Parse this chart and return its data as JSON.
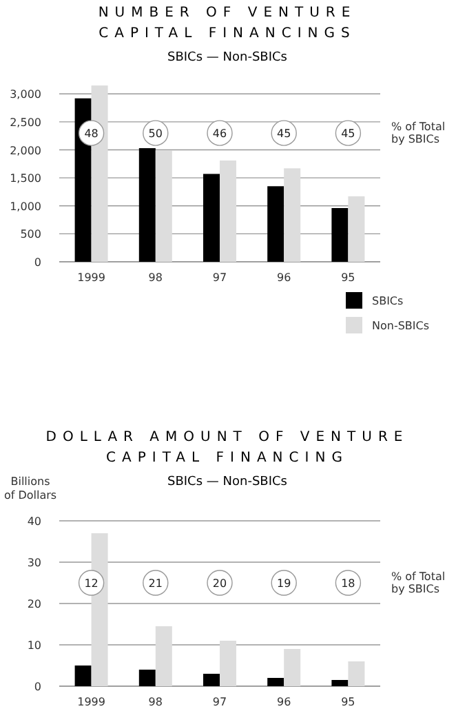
{
  "chart_data": [
    {
      "type": "bar",
      "title": "NUMBER OF VENTURE CAPITAL FINANCINGS",
      "subtitle": "SBICs — Non-SBICs",
      "categories": [
        "1999",
        "98",
        "97",
        "96",
        "95"
      ],
      "series": [
        {
          "name": "SBICs",
          "color": "#000000",
          "values": [
            2920,
            2030,
            1570,
            1350,
            960
          ]
        },
        {
          "name": "Non-SBICs",
          "color": "#dddddd",
          "values": [
            3150,
            1990,
            1810,
            1670,
            1170
          ]
        }
      ],
      "ylim": [
        0,
        3200
      ],
      "yticks": [
        0,
        {
          "value": 500,
          "label": "500"
        },
        {
          "value": 1000,
          "label": "1,000"
        },
        {
          "value": 1500,
          "label": "1,500"
        },
        {
          "value": 2000,
          "label": "2,000"
        },
        {
          "value": 2500,
          "label": "2,500"
        },
        {
          "value": 3000,
          "label": "3,000"
        }
      ],
      "grid": "y",
      "legend": "bottom right",
      "annotations": [
        {
          "text": "48",
          "x": "1999",
          "y": 2300
        },
        {
          "text": "50",
          "x": "98",
          "y": 2300
        },
        {
          "text": "46",
          "x": "97",
          "y": 2300
        },
        {
          "text": "45",
          "x": "96",
          "y": 2300
        },
        {
          "text": "45",
          "x": "95",
          "y": 2300
        },
        "% of Total by SBICs"
      ]
    },
    {
      "type": "bar",
      "title": "DOLLAR AMOUNT OF VENTURE CAPITAL FINANCING",
      "subtitle": "SBICs — Non-SBICs",
      "ylabel": "Billions of Dollars",
      "categories": [
        "1999",
        "98",
        "97",
        "96",
        "95"
      ],
      "series": [
        {
          "color": "#000000",
          "values": [
            5,
            4,
            3,
            2,
            1.5
          ]
        },
        {
          "color": "#dddddd",
          "values": [
            37,
            14.5,
            11,
            9,
            6
          ]
        }
      ],
      "ylim": [
        0,
        40
      ],
      "yticks": [
        0,
        10,
        20,
        30,
        40
      ],
      "grid": "y",
      "annotations": [
        {
          "text": "12",
          "x": "1999",
          "y": 25
        },
        {
          "text": "21",
          "x": "98",
          "y": 25
        },
        {
          "text": "20",
          "x": "97",
          "y": 25
        },
        {
          "text": "19",
          "x": "96",
          "y": 25
        },
        {
          "text": "18",
          "x": "95",
          "y": 25
        },
        "% of Total by SBICs"
      ]
    }
  ]
}
